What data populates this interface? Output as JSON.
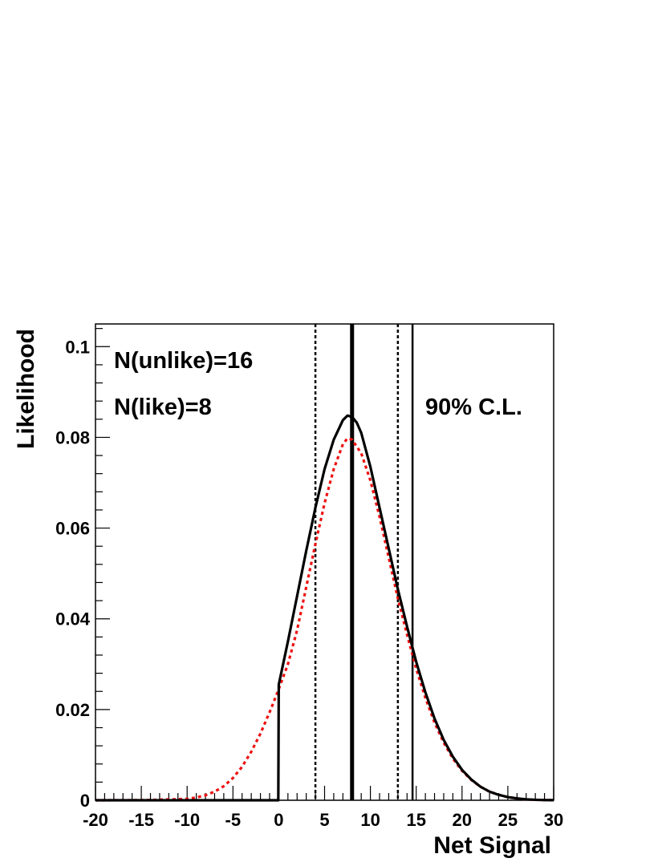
{
  "chart_data": {
    "type": "line",
    "title": "",
    "xlabel": "Net Signal",
    "ylabel": "Likelihood",
    "xlim": [
      -20,
      30
    ],
    "ylim": [
      0,
      0.105
    ],
    "grid": false,
    "x_ticks": [
      "-20",
      "-15",
      "-10",
      "-5",
      "0",
      "5",
      "10",
      "15",
      "20",
      "25",
      "30"
    ],
    "y_ticks": [
      "0",
      "0.02",
      "0.04",
      "0.06",
      "0.08",
      "0.1"
    ],
    "annotations": [
      "N(unlike)=16",
      "N(like)=8",
      "90% C.L."
    ],
    "series": [
      {
        "name": "",
        "color": "#000000",
        "style": "solid",
        "x": [
          -20,
          -15,
          -10,
          -5,
          -1,
          -0.05,
          0,
          1,
          2,
          3,
          4,
          5,
          6,
          7,
          7.5,
          8,
          8.5,
          9,
          10,
          11,
          12,
          13,
          14,
          15,
          16,
          17,
          18,
          19,
          20,
          21,
          22,
          23,
          24,
          25,
          26,
          27,
          28,
          29,
          30
        ],
        "y": [
          0,
          0,
          0,
          0,
          0,
          0,
          0.0255,
          0.035,
          0.045,
          0.055,
          0.0645,
          0.073,
          0.0795,
          0.0838,
          0.0848,
          0.0845,
          0.0833,
          0.081,
          0.0735,
          0.0645,
          0.0555,
          0.0465,
          0.0383,
          0.0305,
          0.0238,
          0.018,
          0.0133,
          0.0096,
          0.0067,
          0.0046,
          0.003,
          0.0019,
          0.0012,
          0.0007,
          0.0004,
          0.0002,
          0.0001,
          5e-05,
          2e-05
        ]
      },
      {
        "name": "",
        "color": "#ee1111",
        "style": "dotted",
        "x": [
          -20,
          -15,
          -10,
          -9,
          -8,
          -7,
          -6,
          -5,
          -4,
          -3,
          -2,
          -1,
          0,
          1,
          2,
          3,
          4,
          5,
          6,
          7,
          7.5,
          8,
          9,
          10,
          11,
          12,
          13,
          14,
          15,
          16,
          17,
          18,
          19,
          20,
          21,
          22,
          23,
          24,
          25,
          26,
          27,
          28,
          29,
          30
        ],
        "y": [
          0,
          2e-05,
          0.0003,
          0.0006,
          0.0011,
          0.0019,
          0.0031,
          0.0049,
          0.0074,
          0.0107,
          0.0147,
          0.0194,
          0.0245,
          0.03,
          0.0375,
          0.047,
          0.0565,
          0.0655,
          0.073,
          0.0785,
          0.0798,
          0.0795,
          0.0765,
          0.0705,
          0.0625,
          0.0535,
          0.0445,
          0.0365,
          0.029,
          0.0226,
          0.0171,
          0.0127,
          0.0092,
          0.0065,
          0.0045,
          0.003,
          0.0019,
          0.0012,
          0.0007,
          0.0004,
          0.0002,
          0.0001,
          5e-05,
          2e-05
        ]
      }
    ],
    "vertical_lines": [
      {
        "x": 4.0,
        "style": "dotted",
        "width": 2.5
      },
      {
        "x": 8.0,
        "style": "solid",
        "width": 5
      },
      {
        "x": 13.0,
        "style": "dotted",
        "width": 2.5
      },
      {
        "x": 14.6,
        "style": "solid",
        "width": 2.5
      }
    ]
  }
}
